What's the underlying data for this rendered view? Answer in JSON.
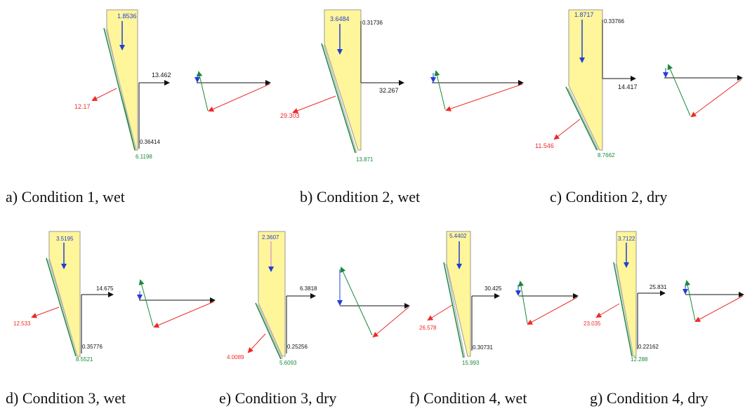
{
  "panels": [
    {
      "caption": "a) Condition 1, wet",
      "weight": "1.8536",
      "resultant": "12.17",
      "horizontal": "13.462",
      "vertical": "0.36414",
      "lower": "6.1198"
    },
    {
      "caption": "b) Condition 2, wet",
      "weight": "3.6484",
      "resultant": "29.303",
      "horizontal": "32.267",
      "vertical": "0.31736",
      "lower": "13.871"
    },
    {
      "caption": "c) Condition 2, dry",
      "weight": "1.8717",
      "resultant": "11.546",
      "horizontal": "14.417",
      "vertical": "0.33766",
      "lower": "8.7662"
    },
    {
      "caption": "d) Condition 3, wet",
      "weight": "3.5195",
      "resultant": "12.533",
      "horizontal": "14.675",
      "vertical": "0.35776",
      "lower": "8.5521"
    },
    {
      "caption": "e) Condition 3, dry",
      "weight": "2.3607",
      "resultant": "4.0089",
      "horizontal": "6.3818",
      "vertical": "0.25256",
      "lower": "5.6093"
    },
    {
      "caption": "f) Condition 4, wet",
      "weight": "5.4402",
      "resultant": "26.578",
      "horizontal": "30.425",
      "vertical": "0.30731",
      "lower": "15.993"
    },
    {
      "caption": "g) Condition 4, dry",
      "weight": "3.7122",
      "resultant": "23.035",
      "horizontal": "25.831",
      "vertical": "0.22162",
      "lower": "12.288"
    }
  ],
  "colors": {
    "body_fill": "#fff59a",
    "body_stroke": "#9a9a9a",
    "weight": "#1f3fd6",
    "horizontal": "#111111",
    "resultant": "#ee2a2a",
    "lower": "#1a8a3a",
    "vertical": "#111111"
  }
}
